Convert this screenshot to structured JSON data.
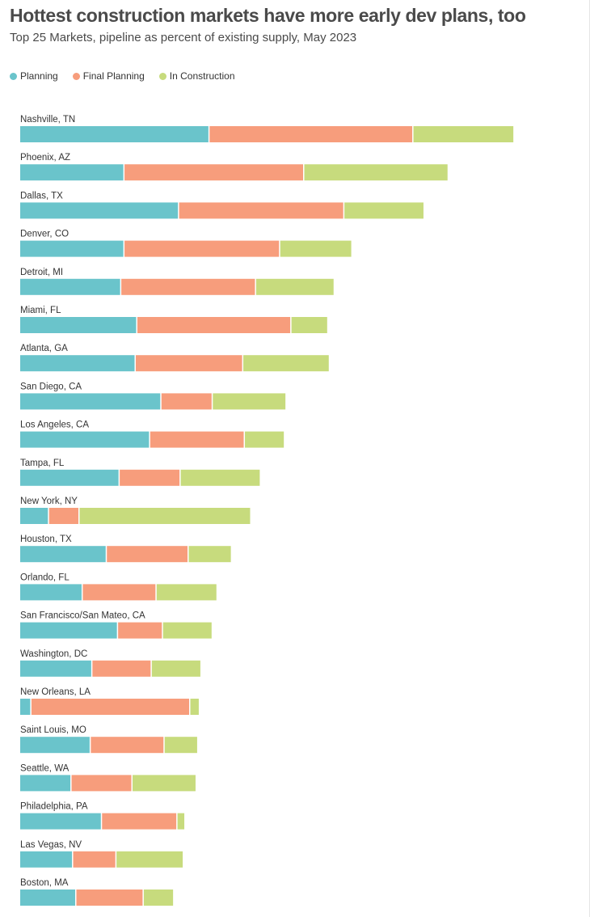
{
  "title": "Hottest construction markets have more early dev plans, too",
  "subtitle": "Top 25 Markets, pipeline as percent of existing supply, May 2023",
  "legend": [
    {
      "label": "Planning",
      "color": "#6ac4cb"
    },
    {
      "label": "Final Planning",
      "color": "#f79d7c"
    },
    {
      "label": "In Construction",
      "color": "#c7db7d"
    }
  ],
  "chart_data": {
    "type": "bar",
    "orientation": "horizontal",
    "stacked": true,
    "title": "Hottest construction markets have more early dev plans, too",
    "subtitle": "Top 25 Markets, pipeline as percent of existing supply, May 2023",
    "categories": [
      "Nashville, TN",
      "Phoenix, AZ",
      "Dallas, TX",
      "Denver, CO",
      "Detroit, MI",
      "Miami, FL",
      "Atlanta, GA",
      "San Diego, CA",
      "Los Angeles, CA",
      "Tampa, FL",
      "New York, NY",
      "Houston, TX",
      "Orlando, FL",
      "San Francisco/San Mateo, CA",
      "Washington, DC",
      "New Orleans, LA",
      "Saint Louis, MO",
      "Seattle, WA",
      "Philadelphia, PA",
      "Las Vegas, NV",
      "Boston, MA"
    ],
    "series": [
      {
        "name": "Planning",
        "color": "#6ac4cb",
        "values": [
          11.8,
          6.5,
          9.9,
          6.5,
          6.3,
          7.3,
          7.2,
          8.8,
          8.1,
          6.2,
          1.8,
          5.4,
          3.9,
          6.1,
          4.5,
          0.7,
          4.4,
          3.2,
          5.1,
          3.3,
          3.5
        ]
      },
      {
        "name": "Final Planning",
        "color": "#f79d7c",
        "values": [
          12.7,
          11.2,
          10.3,
          9.7,
          8.4,
          9.6,
          6.7,
          3.2,
          5.9,
          3.8,
          1.9,
          5.1,
          4.6,
          2.8,
          3.7,
          9.9,
          4.6,
          3.8,
          4.7,
          2.7,
          4.2
        ]
      },
      {
        "name": "In Construction",
        "color": "#c7db7d",
        "values": [
          6.3,
          9.0,
          5.0,
          4.5,
          4.9,
          2.3,
          5.4,
          4.6,
          2.5,
          5.0,
          10.7,
          2.7,
          3.8,
          3.1,
          3.1,
          0.6,
          2.1,
          4.0,
          0.5,
          4.2,
          1.9
        ]
      }
    ],
    "xlim": [
      0,
      35.5
    ],
    "grid": false,
    "legend_position": "top-left"
  }
}
